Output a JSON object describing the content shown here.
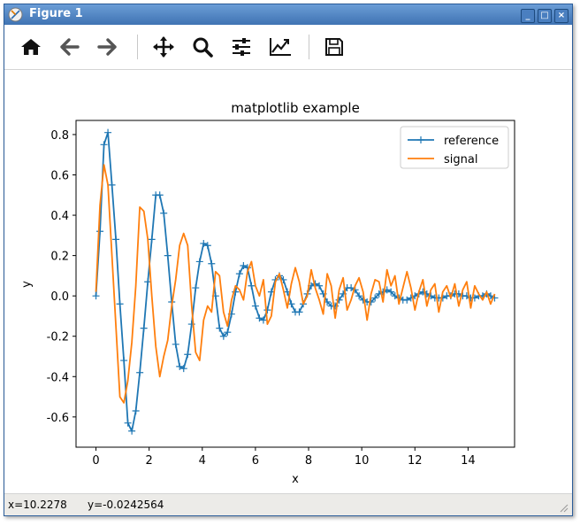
{
  "window": {
    "title": "Figure 1",
    "minimize_label": "_",
    "maximize_label": "□",
    "close_label": "×"
  },
  "toolbar": {
    "buttons": [
      {
        "name": "home-icon"
      },
      {
        "name": "back-arrow-icon"
      },
      {
        "name": "forward-arrow-icon"
      },
      {
        "name": "pan-icon"
      },
      {
        "name": "zoom-icon"
      },
      {
        "name": "subplots-icon"
      },
      {
        "name": "edit-axis-icon"
      },
      {
        "name": "save-icon"
      }
    ]
  },
  "status": {
    "x": "x=10.2278",
    "y": "y=-0.0242564"
  },
  "chart_data": {
    "type": "line",
    "title": "matplotlib example",
    "xlabel": "x",
    "ylabel": "y",
    "xlim": [
      -0.75,
      15.75
    ],
    "ylim": [
      -0.75,
      0.87
    ],
    "xticks": [
      "0",
      "2",
      "4",
      "6",
      "8",
      "10",
      "12",
      "14"
    ],
    "xtick_values": [
      0,
      2,
      4,
      6,
      8,
      10,
      12,
      14
    ],
    "yticks": [
      "-0.6",
      "-0.4",
      "-0.2",
      "0.0",
      "0.2",
      "0.4",
      "0.6",
      "0.8"
    ],
    "ytick_values": [
      -0.6,
      -0.4,
      -0.2,
      0.0,
      0.2,
      0.4,
      0.6,
      0.8
    ],
    "legend_position": "top-right",
    "series": [
      {
        "name": "reference",
        "color": "#1f77b4",
        "marker": "+",
        "x": [
          0.0,
          0.15,
          0.3,
          0.45,
          0.6,
          0.75,
          0.9,
          1.05,
          1.2,
          1.35,
          1.5,
          1.65,
          1.8,
          1.95,
          2.1,
          2.25,
          2.4,
          2.55,
          2.7,
          2.85,
          3.0,
          3.15,
          3.3,
          3.45,
          3.6,
          3.75,
          3.9,
          4.05,
          4.2,
          4.35,
          4.5,
          4.65,
          4.8,
          4.95,
          5.1,
          5.25,
          5.4,
          5.55,
          5.7,
          5.85,
          6.0,
          6.15,
          6.3,
          6.45,
          6.6,
          6.75,
          6.9,
          7.05,
          7.2,
          7.35,
          7.5,
          7.65,
          7.8,
          7.95,
          8.1,
          8.25,
          8.4,
          8.55,
          8.7,
          8.85,
          9.0,
          9.15,
          9.3,
          9.45,
          9.6,
          9.75,
          9.9,
          10.05,
          10.2,
          10.35,
          10.5,
          10.65,
          10.8,
          10.95,
          11.1,
          11.25,
          11.4,
          11.55,
          11.7,
          11.85,
          12.0,
          12.15,
          12.3,
          12.45,
          12.6,
          12.75,
          12.9,
          13.05,
          13.2,
          13.35,
          13.5,
          13.65,
          13.8,
          13.95,
          14.1,
          14.25,
          14.4,
          14.55,
          14.7,
          14.85,
          15.0
        ],
        "values": [
          0.0,
          0.32,
          0.75,
          0.81,
          0.55,
          0.28,
          -0.04,
          -0.32,
          -0.63,
          -0.67,
          -0.57,
          -0.38,
          -0.16,
          0.07,
          0.28,
          0.5,
          0.5,
          0.41,
          0.2,
          -0.03,
          -0.24,
          -0.35,
          -0.36,
          -0.29,
          -0.14,
          0.04,
          0.17,
          0.26,
          0.25,
          0.16,
          0.0,
          -0.16,
          -0.2,
          -0.18,
          -0.09,
          0.02,
          0.11,
          0.15,
          0.14,
          0.05,
          -0.05,
          -0.11,
          -0.12,
          -0.07,
          0.02,
          0.08,
          0.1,
          0.08,
          0.02,
          -0.04,
          -0.08,
          -0.08,
          -0.04,
          0.01,
          0.05,
          0.06,
          0.05,
          0.01,
          -0.03,
          -0.05,
          -0.05,
          -0.02,
          0.01,
          0.04,
          0.04,
          0.03,
          0.0,
          -0.02,
          -0.03,
          -0.03,
          -0.01,
          0.01,
          0.02,
          0.03,
          0.02,
          0.0,
          -0.01,
          -0.02,
          -0.02,
          -0.01,
          0.0,
          0.01,
          0.02,
          0.01,
          0.0,
          -0.01,
          -0.01,
          -0.01,
          0.0,
          0.0,
          0.01,
          0.01,
          0.0,
          0.0,
          -0.01,
          -0.01,
          0.0,
          0.0,
          0.01,
          0.0,
          -0.01
        ]
      },
      {
        "name": "signal",
        "color": "#ff7f0e",
        "marker": "",
        "x": [
          0.0,
          0.15,
          0.3,
          0.45,
          0.6,
          0.75,
          0.9,
          1.05,
          1.2,
          1.35,
          1.5,
          1.65,
          1.8,
          1.95,
          2.1,
          2.25,
          2.4,
          2.55,
          2.7,
          2.85,
          3.0,
          3.15,
          3.3,
          3.45,
          3.6,
          3.75,
          3.9,
          4.05,
          4.2,
          4.35,
          4.5,
          4.65,
          4.8,
          4.95,
          5.1,
          5.25,
          5.4,
          5.55,
          5.7,
          5.85,
          6.0,
          6.15,
          6.3,
          6.45,
          6.6,
          6.75,
          6.9,
          7.05,
          7.2,
          7.35,
          7.5,
          7.65,
          7.8,
          7.95,
          8.1,
          8.25,
          8.4,
          8.55,
          8.7,
          8.85,
          9.0,
          9.15,
          9.3,
          9.45,
          9.6,
          9.75,
          9.9,
          10.05,
          10.2,
          10.35,
          10.5,
          10.65,
          10.8,
          10.95,
          11.1,
          11.25,
          11.4,
          11.55,
          11.7,
          11.85,
          12.0,
          12.15,
          12.3,
          12.45,
          12.6,
          12.75,
          12.9,
          13.05,
          13.2,
          13.35,
          13.5,
          13.65,
          13.8,
          13.95,
          14.1,
          14.25,
          14.4,
          14.55,
          14.7,
          14.85,
          15.0
        ],
        "values": [
          0.02,
          0.45,
          0.65,
          0.55,
          0.2,
          -0.15,
          -0.5,
          -0.53,
          -0.42,
          -0.23,
          0.05,
          0.44,
          0.42,
          0.28,
          0.0,
          -0.25,
          -0.4,
          -0.3,
          -0.22,
          -0.05,
          0.08,
          0.25,
          0.31,
          0.25,
          -0.05,
          -0.28,
          -0.32,
          -0.12,
          -0.05,
          -0.08,
          0.12,
          0.1,
          -0.08,
          -0.15,
          -0.02,
          0.05,
          0.03,
          -0.02,
          0.12,
          0.17,
          0.05,
          0.0,
          0.08,
          -0.14,
          -0.1,
          0.07,
          0.11,
          0.03,
          -0.06,
          0.06,
          0.14,
          0.07,
          -0.04,
          0.0,
          0.13,
          0.04,
          -0.02,
          -0.09,
          0.11,
          0.05,
          -0.11,
          0.03,
          0.09,
          -0.07,
          -0.02,
          0.05,
          0.09,
          0.02,
          -0.12,
          0.01,
          0.08,
          0.07,
          -0.03,
          0.13,
          0.05,
          0.1,
          -0.04,
          0.04,
          0.12,
          0.04,
          -0.07,
          0.02,
          0.08,
          -0.05,
          0.03,
          0.06,
          -0.08,
          0.02,
          0.05,
          -0.01,
          0.06,
          -0.05,
          0.03,
          0.07,
          -0.06,
          0.05,
          0.01,
          -0.02,
          0.02,
          -0.04,
          0.01
        ]
      }
    ]
  }
}
